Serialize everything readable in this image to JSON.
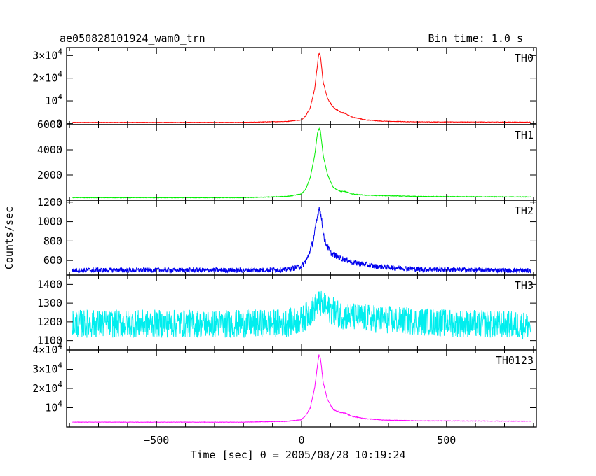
{
  "header": {
    "left_title": "ae050828101924_wam0_trn",
    "right_title": "Bin time: 1.0 s"
  },
  "chart_data": {
    "type": "line",
    "title": "ae050828101924_wam0_trn",
    "bin_time": "Bin time: 1.0 s",
    "xlabel": "Time [sec] 0 = 2005/08/28 10:19:24",
    "ylabel": "Counts/sec",
    "xlim": [
      -810,
      810
    ],
    "x_ticks": [
      -500,
      0,
      500
    ],
    "x_tick_labels": [
      "−500",
      "0",
      "500"
    ],
    "grid": false,
    "panels": [
      {
        "name": "TH0",
        "color": "#ff0000",
        "ylim": [
          -500,
          33500
        ],
        "y_ticks": [
          0,
          10000,
          20000,
          30000
        ],
        "y_tick_labels": [
          {
            "base": "0",
            "sup": ""
          },
          {
            "base": "10",
            "sup": "4"
          },
          {
            "base": "2×10",
            "sup": "4"
          },
          {
            "base": "3×10",
            "sup": "4"
          }
        ],
        "noise": 80,
        "points": [
          [
            -790,
            500
          ],
          [
            -200,
            500
          ],
          [
            -50,
            900
          ],
          [
            0,
            1600
          ],
          [
            15,
            3500
          ],
          [
            30,
            7000
          ],
          [
            45,
            15000
          ],
          [
            55,
            26000
          ],
          [
            60,
            31000
          ],
          [
            65,
            30000
          ],
          [
            75,
            18000
          ],
          [
            90,
            11000
          ],
          [
            110,
            7000
          ],
          [
            135,
            5000
          ],
          [
            150,
            4500
          ],
          [
            175,
            2800
          ],
          [
            220,
            1600
          ],
          [
            280,
            1000
          ],
          [
            400,
            700
          ],
          [
            790,
            600
          ]
        ]
      },
      {
        "name": "TH1",
        "color": "#00ee00",
        "ylim": [
          0,
          6000
        ],
        "y_ticks": [
          2000,
          4000,
          6000
        ],
        "y_tick_labels": [
          {
            "base": "2000",
            "sup": ""
          },
          {
            "base": "4000",
            "sup": ""
          },
          {
            "base": "6000",
            "sup": ""
          }
        ],
        "noise": 20,
        "points": [
          [
            -790,
            200
          ],
          [
            -200,
            200
          ],
          [
            -50,
            300
          ],
          [
            0,
            500
          ],
          [
            15,
            900
          ],
          [
            30,
            1800
          ],
          [
            45,
            3500
          ],
          [
            55,
            5300
          ],
          [
            60,
            5700
          ],
          [
            65,
            5500
          ],
          [
            75,
            3500
          ],
          [
            90,
            2000
          ],
          [
            110,
            1000
          ],
          [
            135,
            700
          ],
          [
            150,
            700
          ],
          [
            175,
            500
          ],
          [
            220,
            400
          ],
          [
            400,
            300
          ],
          [
            790,
            260
          ]
        ]
      },
      {
        "name": "TH2",
        "color": "#0000ee",
        "ylim": [
          450,
          1220
        ],
        "y_ticks": [
          600,
          800,
          1000,
          1200
        ],
        "y_tick_labels": [
          {
            "base": "600",
            "sup": ""
          },
          {
            "base": "800",
            "sup": ""
          },
          {
            "base": "1000",
            "sup": ""
          },
          {
            "base": "1200",
            "sup": ""
          }
        ],
        "noise": 25,
        "points": [
          [
            -790,
            500
          ],
          [
            -200,
            500
          ],
          [
            -50,
            505
          ],
          [
            0,
            540
          ],
          [
            20,
            620
          ],
          [
            40,
            800
          ],
          [
            55,
            1050
          ],
          [
            60,
            1150
          ],
          [
            65,
            1100
          ],
          [
            80,
            800
          ],
          [
            100,
            680
          ],
          [
            130,
            630
          ],
          [
            180,
            580
          ],
          [
            250,
            540
          ],
          [
            400,
            510
          ],
          [
            790,
            495
          ]
        ]
      },
      {
        "name": "TH3",
        "color": "#00eeee",
        "ylim": [
          1050,
          1450
        ],
        "y_ticks": [
          1100,
          1200,
          1300,
          1400
        ],
        "y_tick_labels": [
          {
            "base": "1100",
            "sup": ""
          },
          {
            "base": "1200",
            "sup": ""
          },
          {
            "base": "1300",
            "sup": ""
          },
          {
            "base": "1400",
            "sup": ""
          }
        ],
        "noise": 75,
        "points": [
          [
            -790,
            1190
          ],
          [
            -200,
            1190
          ],
          [
            -50,
            1195
          ],
          [
            0,
            1210
          ],
          [
            30,
            1250
          ],
          [
            60,
            1300
          ],
          [
            90,
            1270
          ],
          [
            150,
            1230
          ],
          [
            300,
            1210
          ],
          [
            500,
            1195
          ],
          [
            790,
            1180
          ]
        ]
      },
      {
        "name": "TH0123",
        "color": "#ff00ff",
        "ylim": [
          0,
          40000
        ],
        "y_ticks": [
          10000,
          20000,
          30000,
          40000
        ],
        "y_tick_labels": [
          {
            "base": "10",
            "sup": "4"
          },
          {
            "base": "2×10",
            "sup": "4"
          },
          {
            "base": "3×10",
            "sup": "4"
          },
          {
            "base": "4×10",
            "sup": "4"
          }
        ],
        "noise": 90,
        "points": [
          [
            -790,
            2500
          ],
          [
            -200,
            2500
          ],
          [
            -50,
            2900
          ],
          [
            0,
            3800
          ],
          [
            15,
            6000
          ],
          [
            30,
            10000
          ],
          [
            45,
            20000
          ],
          [
            55,
            32000
          ],
          [
            60,
            37500
          ],
          [
            65,
            36000
          ],
          [
            75,
            23000
          ],
          [
            90,
            14000
          ],
          [
            110,
            9000
          ],
          [
            135,
            7500
          ],
          [
            150,
            7200
          ],
          [
            175,
            5500
          ],
          [
            220,
            4300
          ],
          [
            280,
            3600
          ],
          [
            400,
            3200
          ],
          [
            790,
            3000
          ]
        ]
      }
    ]
  }
}
